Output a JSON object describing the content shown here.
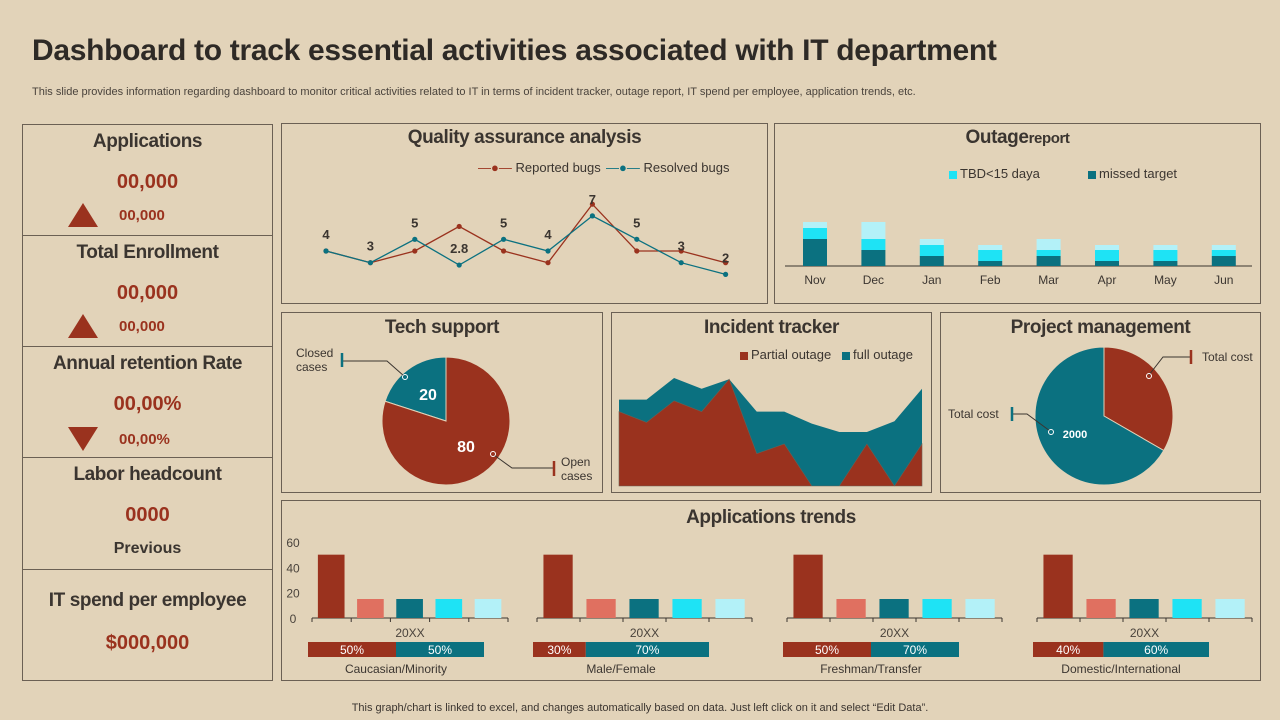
{
  "header": {
    "title": "Dashboard to track essential activities associated with IT department",
    "subtitle": "This slide provides information regarding dashboard to monitor critical activities related to IT in terms of incident tracker, outage report, IT spend per employee, application trends, etc."
  },
  "kpis": [
    {
      "name": "Applications",
      "value": "00,000",
      "change": "00,000",
      "trend": "up"
    },
    {
      "name": "Total Enrollment",
      "value": "00,000",
      "change": "00,000",
      "trend": "up"
    },
    {
      "name": "Annual retention Rate",
      "value": "00,00%",
      "change": "00,00%",
      "trend": "down"
    },
    {
      "name": "Labor headcount",
      "value": "0000",
      "note": "Previous"
    },
    {
      "name": "IT spend per employee",
      "value": "$000,000"
    }
  ],
  "colors": {
    "background": "#e2d3b9",
    "red": "#9a321e",
    "teal": "#0b7180",
    "cyan": "#1ee3f5",
    "light_cyan": "#b3f1f8",
    "salmon": "#e07060"
  },
  "chart_data": [
    {
      "id": "qa",
      "type": "line",
      "title": "Quality assurance analysis",
      "legend": "top-right",
      "grid": false,
      "series": [
        {
          "name": "Reported bugs",
          "color": "#9a321e",
          "values": [
            4,
            3,
            4,
            6.1,
            4,
            3,
            8,
            4,
            4,
            3
          ]
        },
        {
          "name": "Resolved bugs",
          "color": "#0b7180",
          "values": [
            4,
            3,
            5,
            2.8,
            5,
            4,
            7,
            5,
            3,
            2
          ]
        }
      ],
      "data_labels": [
        "4",
        "3",
        "5",
        "2.8",
        "5",
        "4",
        "7",
        "5",
        "3",
        "2"
      ]
    },
    {
      "id": "outage",
      "type": "bar",
      "stacked": true,
      "title_main": "Outage",
      "title_rest": "report",
      "legend": "top",
      "categories": [
        "Nov",
        "Dec",
        "Jan",
        "Feb",
        "Mar",
        "Apr",
        "May",
        "Jun"
      ],
      "series": [
        {
          "name": "missed target",
          "color": "#0b7180",
          "values": [
            27,
            16,
            10,
            5,
            10,
            5,
            5,
            10
          ]
        },
        {
          "name": "TBD<15 daya",
          "color": "#1ee3f5",
          "values": [
            11,
            11,
            11,
            11,
            6,
            11,
            11,
            6
          ]
        },
        {
          "color": "#b3f1f8",
          "values": [
            6,
            17,
            6,
            5,
            11,
            5,
            5,
            5
          ]
        }
      ]
    },
    {
      "id": "tech",
      "type": "pie",
      "title": "Tech support",
      "slices": [
        {
          "label": "Closed cases",
          "value": 20,
          "color": "#0b7180"
        },
        {
          "label": "Open cases",
          "value": 80,
          "color": "#9a321e"
        }
      ]
    },
    {
      "id": "incident",
      "type": "area",
      "stacked": true,
      "title": "Incident tracker",
      "legend": "top-right",
      "series": [
        {
          "name": "Partial outage",
          "color": "#9a321e",
          "values": [
            62,
            53,
            71,
            62,
            89,
            27,
            35,
            0,
            0,
            35,
            0,
            35
          ]
        },
        {
          "name": "full outage",
          "color": "#0b7180",
          "values": [
            10,
            19,
            19,
            19,
            0,
            35,
            27,
            52,
            45,
            10,
            54,
            46
          ]
        }
      ]
    },
    {
      "id": "project",
      "type": "pie",
      "title": "Project management",
      "slices": [
        {
          "label": "Total cost",
          "value": 1000,
          "color": "#9a321e"
        },
        {
          "label": "Total cost",
          "value": 2000,
          "color": "#0b7180"
        }
      ]
    },
    {
      "id": "trends",
      "type": "bar",
      "title": "Applications trends",
      "yticks": [
        "0",
        "20",
        "40",
        "60"
      ],
      "ylim": [
        0,
        60
      ],
      "bar_colors": [
        "#9a321e",
        "#e07060",
        "#0b7180",
        "#1ee3f5",
        "#b3f1f8"
      ],
      "groups": [
        {
          "category": "20XX",
          "label": "Caucasian/Minority",
          "values": [
            50,
            15,
            15,
            15,
            15
          ],
          "split": [
            "50%",
            "50%"
          ],
          "split_values": [
            50,
            50
          ]
        },
        {
          "category": "20XX",
          "label": "Male/Female",
          "values": [
            50,
            15,
            15,
            15,
            15
          ],
          "split": [
            "30%",
            "70%"
          ],
          "split_values": [
            30,
            70
          ]
        },
        {
          "category": "20XX",
          "label": "Freshman/Transfer",
          "values": [
            50,
            15,
            15,
            15,
            15
          ],
          "split": [
            "50%",
            "70%"
          ],
          "split_values": [
            50,
            70
          ]
        },
        {
          "category": "20XX",
          "label": "Domestic/International",
          "values": [
            50,
            15,
            15,
            15,
            15
          ],
          "split": [
            "40%",
            "60%"
          ],
          "split_values": [
            40,
            60
          ]
        }
      ]
    }
  ],
  "footer": "This graph/chart is linked to excel,  and changes automatically based on data. Just left click on it and select “Edit Data”."
}
